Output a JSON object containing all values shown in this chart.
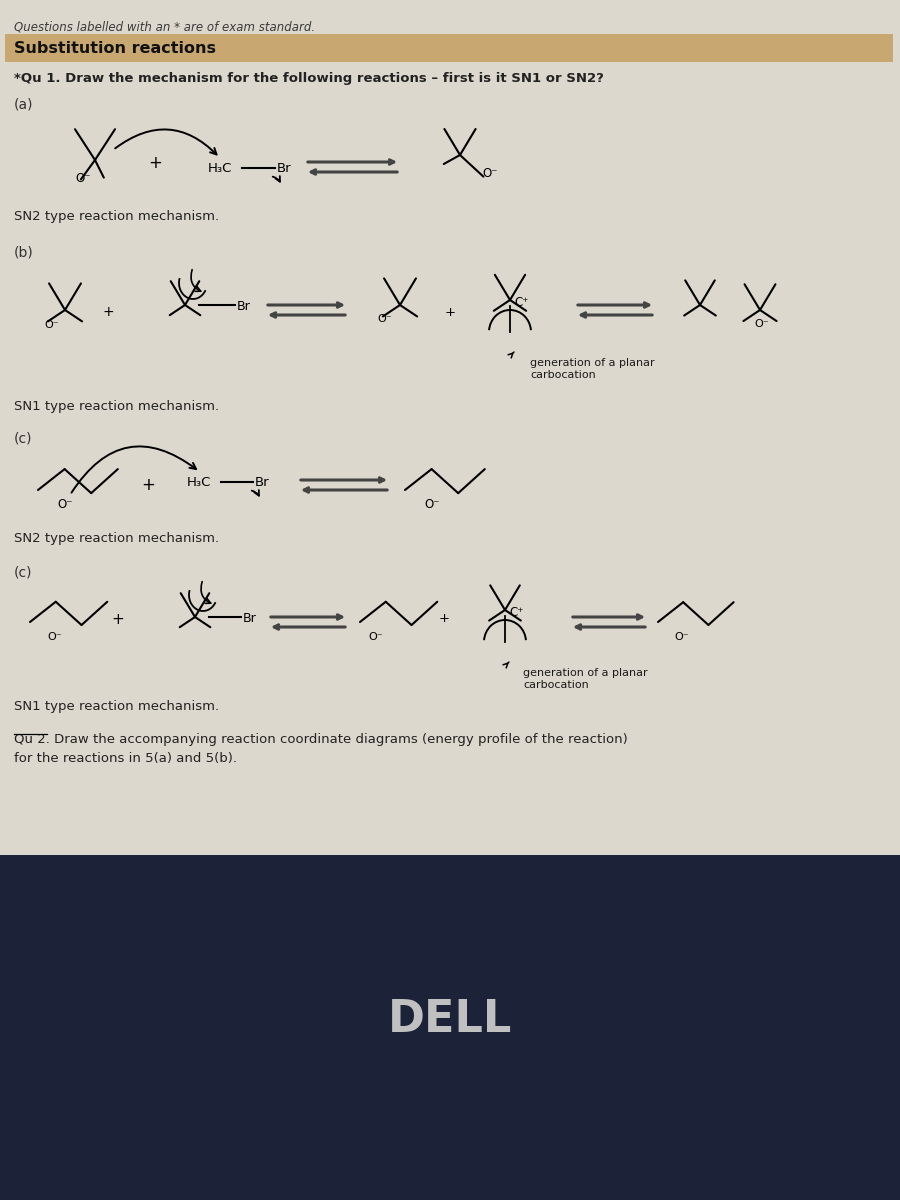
{
  "header_text": "Questions labelled with an * are of exam standard.",
  "section_title": "Substitution reactions",
  "section_bg": "#c8a870",
  "page_bg": "#d6cfc0",
  "content_bg": "#ddd8ce",
  "qu1_text": "*Qu 1. Draw the mechanism for the following reactions – first is it SN1 or SN2?",
  "sn2_text_a": "SN2 type reaction mechanism.",
  "sn1_text_b": "SN1 type reaction mechanism.",
  "sn2_text_c": "SN2 type reaction mechanism.",
  "sn1_text_c2": "SN1 type reaction mechanism.",
  "gen_planar_1": "generation of a planar\ncarbocation",
  "gen_planar_2": "generation of a planar\ncarbocation",
  "qu2_line1": "Qu 2. Draw the accompanying reaction coordinate diagrams (energy profile of the reaction)",
  "qu2_line2": "for the reactions in 5(a) and 5(b).",
  "dell_text": "DELL",
  "bottom_bg": "#1c2238",
  "label_a": "(a)",
  "label_b": "(b)",
  "label_c1": "(c)",
  "label_c2": "(c)",
  "text_color": "#222222",
  "arrow_color": "#444444"
}
